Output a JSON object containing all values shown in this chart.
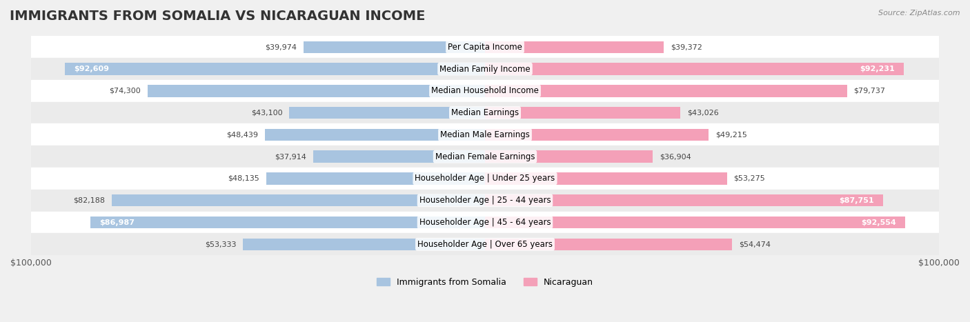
{
  "title": "IMMIGRANTS FROM SOMALIA VS NICARAGUAN INCOME",
  "source": "Source: ZipAtlas.com",
  "categories": [
    "Per Capita Income",
    "Median Family Income",
    "Median Household Income",
    "Median Earnings",
    "Median Male Earnings",
    "Median Female Earnings",
    "Householder Age | Under 25 years",
    "Householder Age | 25 - 44 years",
    "Householder Age | 45 - 64 years",
    "Householder Age | Over 65 years"
  ],
  "somalia_values": [
    39974,
    92609,
    74300,
    43100,
    48439,
    37914,
    48135,
    82188,
    86987,
    53333
  ],
  "nicaraguan_values": [
    39372,
    92231,
    79737,
    43026,
    49215,
    36904,
    53275,
    87751,
    92554,
    54474
  ],
  "somalia_color": "#a8c4e0",
  "nicaraguan_color": "#f4a0b8",
  "somalia_label": "Immigrants from Somalia",
  "nicaraguan_label": "Nicaraguan",
  "axis_max": 100000,
  "background_color": "#f5f5f5",
  "row_bg_light": "#ffffff",
  "row_bg_dark": "#eeeeee",
  "bar_height": 0.55,
  "title_fontsize": 14,
  "label_fontsize": 8.5,
  "value_fontsize": 8.0,
  "xlim": [
    0,
    100000
  ]
}
